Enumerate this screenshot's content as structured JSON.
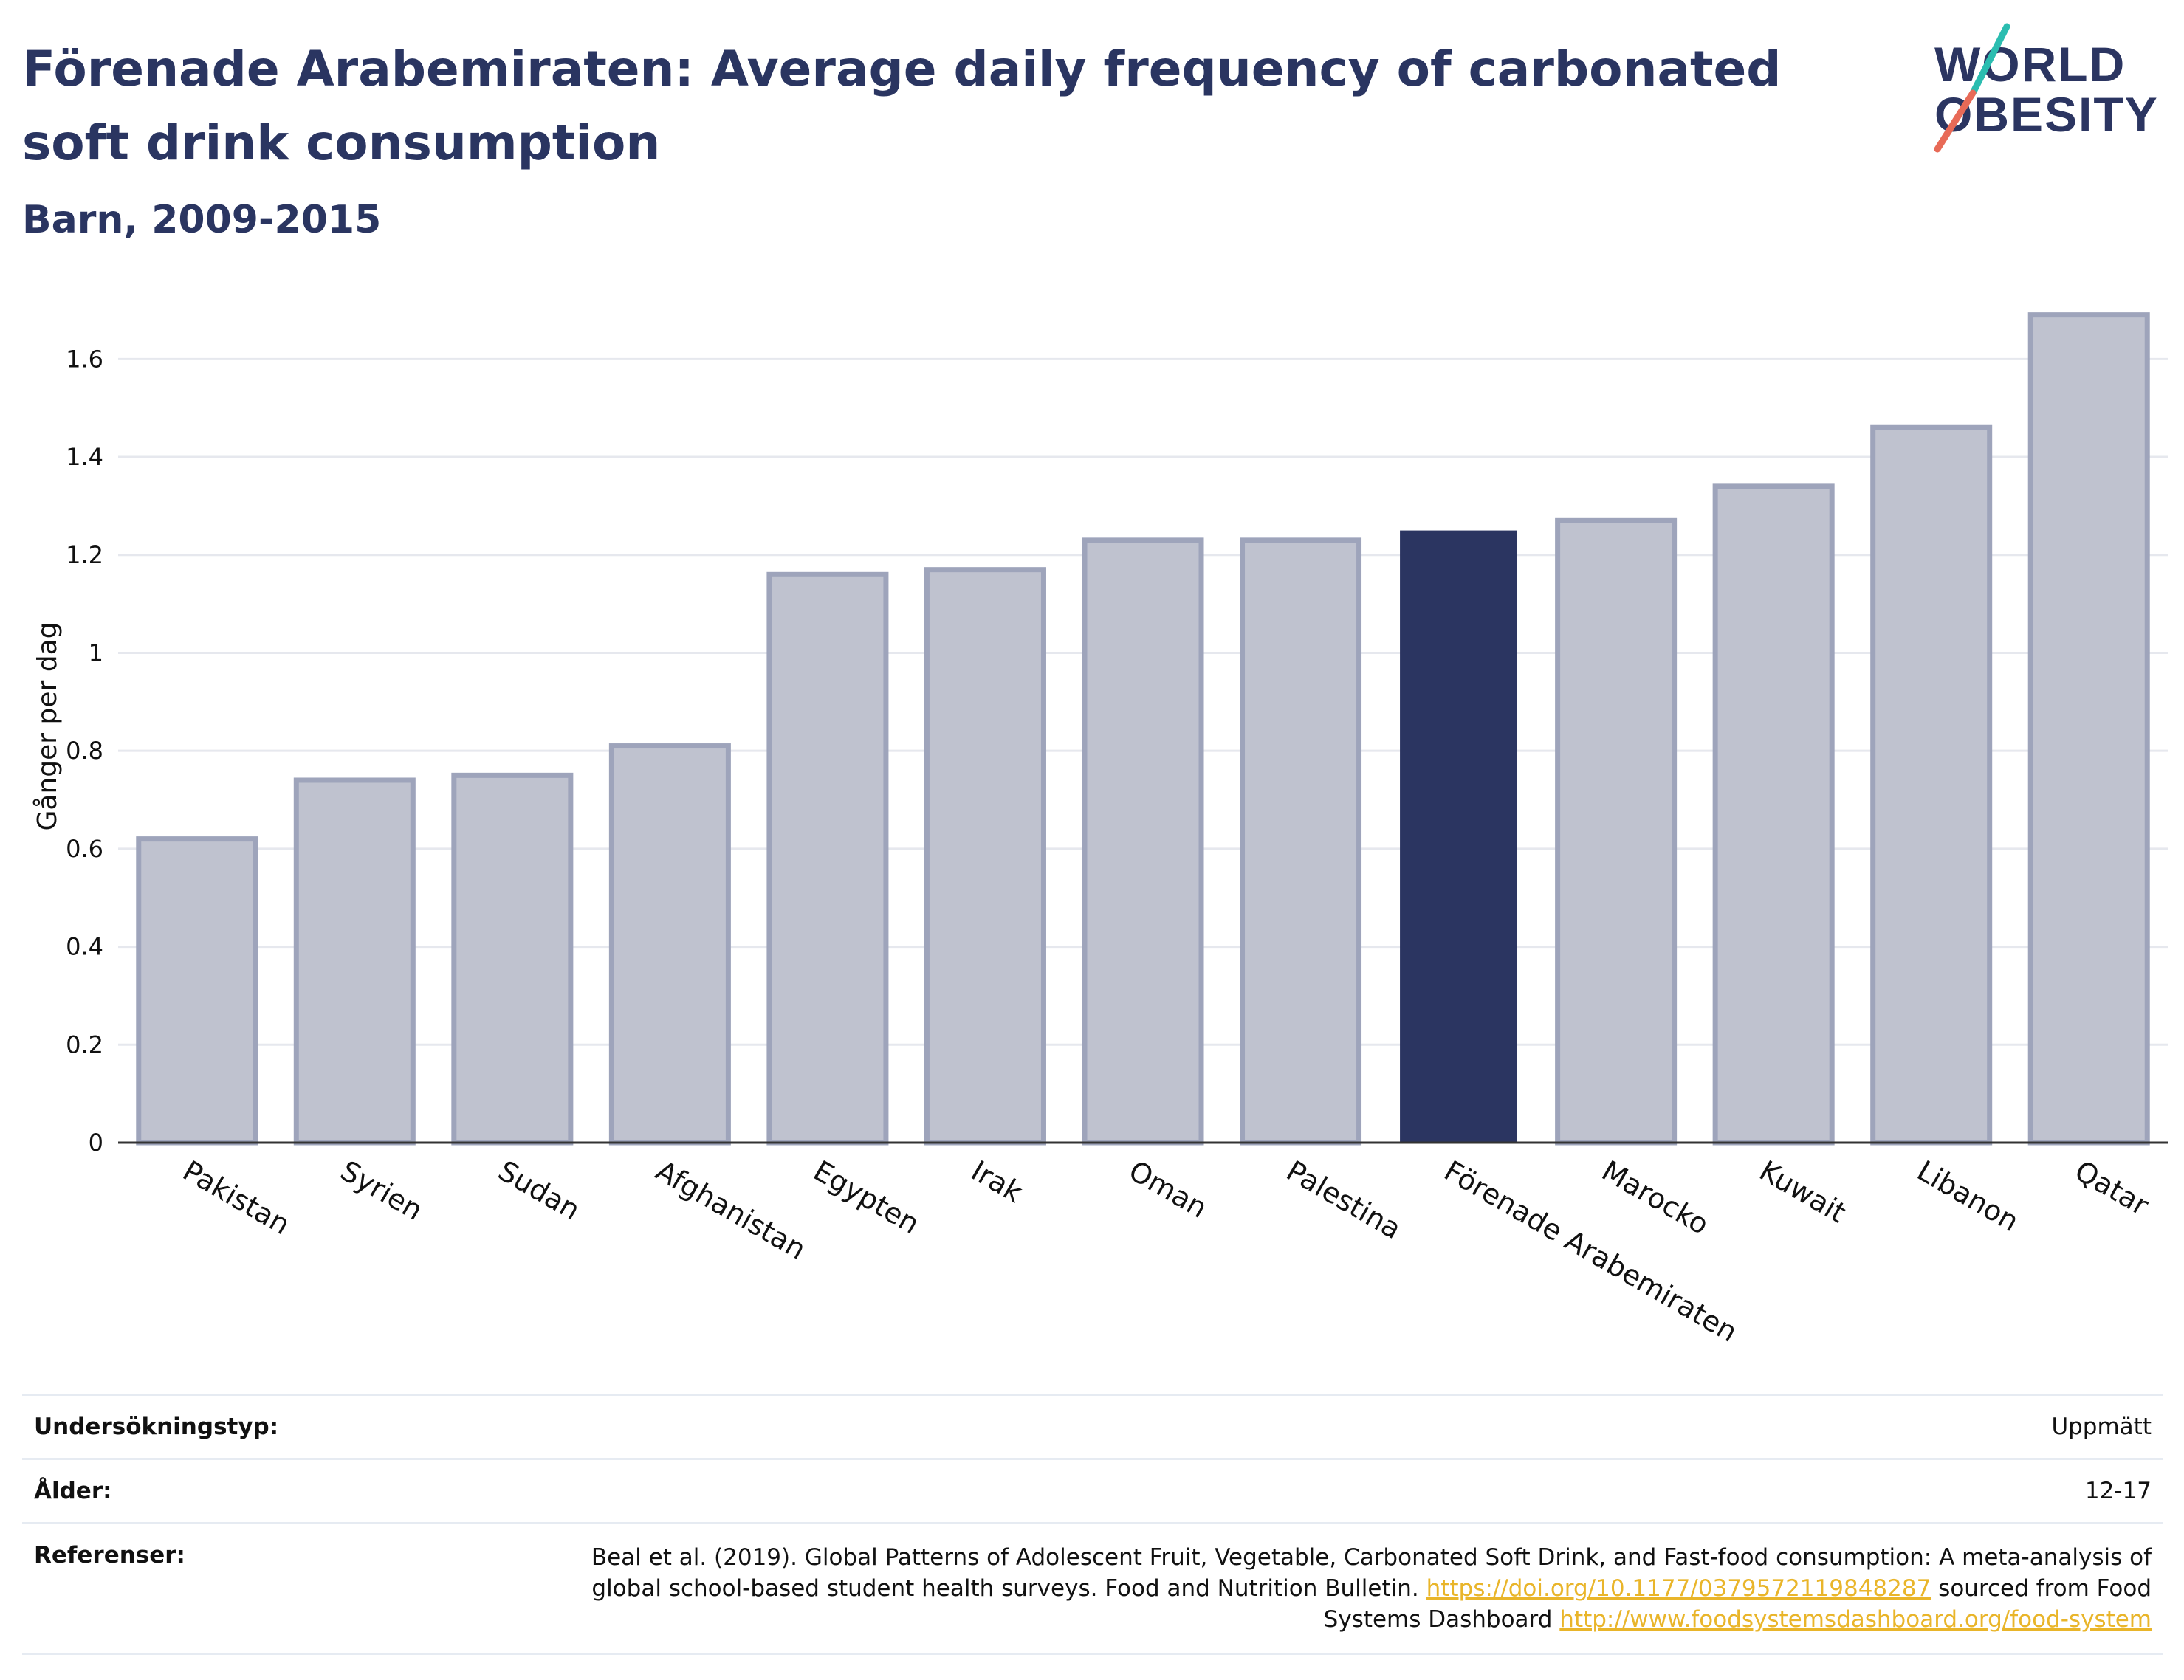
{
  "header": {
    "title": "Förenade Arabemiraten: Average daily frequency of carbonated soft drink consumption",
    "subtitle": "Barn, 2009-2015"
  },
  "logo": {
    "line1": "WORLD",
    "line2": "OBESITY"
  },
  "colors": {
    "highlight": "#2b3561",
    "bar_fill": "#bfc2cf",
    "bar_stroke": "#9ea4bb",
    "grid": "#e6e8ee",
    "link": "#e9b52a"
  },
  "chart_data": {
    "type": "bar",
    "ylabel": "Gånger per dag",
    "xlabel": "",
    "ylim": [
      0,
      1.7
    ],
    "yticks": [
      0,
      0.2,
      0.4,
      0.6,
      0.8,
      1,
      1.2,
      1.4,
      1.6
    ],
    "ytick_labels": [
      "0",
      "0.2",
      "0.4",
      "0.6",
      "0.8",
      "1",
      "1.2",
      "1.4",
      "1.6"
    ],
    "grid": true,
    "categories": [
      "Pakistan",
      "Syrien",
      "Sudan",
      "Afghanistan",
      "Egypten",
      "Irak",
      "Oman",
      "Palestina",
      "Förenade Arabemiraten",
      "Marocko",
      "Kuwait",
      "Libanon",
      "Qatar"
    ],
    "values": [
      0.62,
      0.74,
      0.75,
      0.81,
      1.16,
      1.17,
      1.23,
      1.23,
      1.25,
      1.27,
      1.34,
      1.46,
      1.69
    ],
    "highlight": "Förenade Arabemiraten"
  },
  "meta": {
    "survey": {
      "label": "Undersökningstyp:",
      "value": "Uppmätt"
    },
    "age": {
      "label": "Ålder:",
      "value": "12-17"
    },
    "refs": {
      "label": "Referenser:",
      "text1": "Beal et al. (2019). Global Patterns of Adolescent Fruit, Vegetable, Carbonated Soft Drink, and Fast-food consumption: A meta-analysis of global school-based student health surveys. Food and Nutrition Bulletin. ",
      "link1": "https://doi.org/10.1177/0379572119848287",
      "text2": " sourced from Food Systems Dashboard ",
      "link2": "http://www.foodsystemsdashboard.org/food-system"
    }
  }
}
